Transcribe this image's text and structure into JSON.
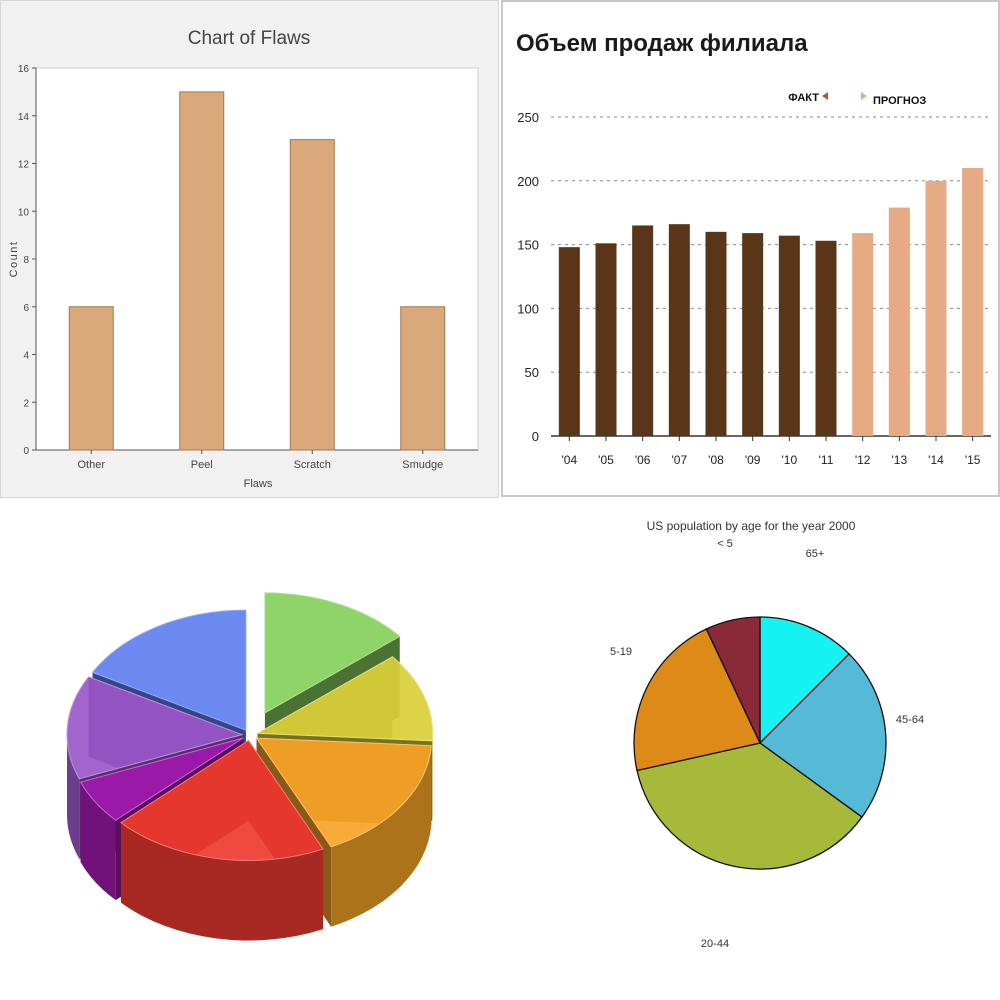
{
  "chart_data": [
    {
      "type": "bar",
      "title": "Chart of Flaws",
      "xlabel": "Flaws",
      "ylabel": "Count",
      "categories": [
        "Other",
        "Peel",
        "Scratch",
        "Smudge"
      ],
      "values": [
        6,
        15,
        13,
        6
      ],
      "ylim": [
        0,
        16
      ],
      "yticks": [
        0,
        2,
        4,
        6,
        8,
        10,
        12,
        14,
        16
      ],
      "grid": false,
      "colors": {
        "bar": "#dba87c",
        "bar_edge": "#a07850",
        "plot_bg": "#ffffff",
        "panel_bg": "#f1f1f1"
      }
    },
    {
      "type": "bar",
      "title": "Объем продаж филиала",
      "legend": [
        "ФАКТ",
        "ПРОГНОЗ"
      ],
      "legend_placement": "top-right",
      "categories": [
        "'04",
        "'05",
        "'06",
        "'07",
        "'08",
        "'09",
        "'10",
        "'11",
        "'12",
        "'13",
        "'14",
        "'15"
      ],
      "series": [
        {
          "values": [
            148,
            151,
            165,
            166,
            160,
            159,
            157,
            153,
            null,
            null,
            null,
            null
          ],
          "color": "#5a3517"
        },
        {
          "values": [
            null,
            null,
            null,
            null,
            null,
            null,
            null,
            null,
            159,
            179,
            200,
            210
          ],
          "color": "#e6aa85"
        }
      ],
      "ylim": [
        0,
        250
      ],
      "yticks": [
        0,
        50,
        100,
        150,
        200,
        250
      ],
      "grid": "dotted-horizontal"
    },
    {
      "type": "pie",
      "style": "3d-exploded",
      "slices": [
        {
          "value": 14,
          "color": "#86d05c"
        },
        {
          "value": 12,
          "color": "#d9cf3a"
        },
        {
          "value": 17,
          "color": "#f7a427"
        },
        {
          "value": 20,
          "color": "#ee3a30"
        },
        {
          "value": 6,
          "color": "#a11ab0"
        },
        {
          "value": 14,
          "color": "#9a57c9"
        },
        {
          "value": 17,
          "color": "#5f7ff0"
        }
      ]
    },
    {
      "type": "pie",
      "title": "US population by age for the year 2000",
      "slices": [
        {
          "label": "65+",
          "value": 12.5,
          "color": "#16f2f2"
        },
        {
          "label": "45-64",
          "value": 22.5,
          "color": "#55bad6"
        },
        {
          "label": "20-44",
          "value": 36.5,
          "color": "#a7b93a"
        },
        {
          "label": "5-19",
          "value": 21.5,
          "color": "#de8a18"
        },
        {
          "label": "< 5",
          "value": 7,
          "color": "#8a2a38"
        }
      ]
    }
  ]
}
